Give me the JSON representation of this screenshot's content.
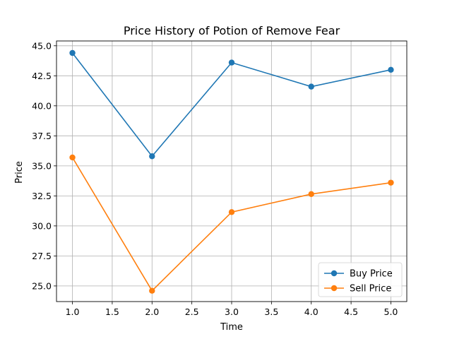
{
  "chart_data": {
    "type": "line",
    "title": "Price History of Potion of Remove Fear",
    "xlabel": "Time",
    "ylabel": "Price",
    "xlim": [
      0.8,
      5.2
    ],
    "ylim": [
      23.7,
      45.4
    ],
    "xticks": [
      1.0,
      1.5,
      2.0,
      2.5,
      3.0,
      3.5,
      4.0,
      4.5,
      5.0
    ],
    "xtick_labels": [
      "1.0",
      "1.5",
      "2.0",
      "2.5",
      "3.0",
      "3.5",
      "4.0",
      "4.5",
      "5.0"
    ],
    "yticks": [
      25.0,
      27.5,
      30.0,
      32.5,
      35.0,
      37.5,
      40.0,
      42.5,
      45.0
    ],
    "ytick_labels": [
      "25.0",
      "27.5",
      "30.0",
      "32.5",
      "35.0",
      "37.5",
      "40.0",
      "42.5",
      "45.0"
    ],
    "grid": true,
    "legend_position": "bottom-right",
    "x": [
      1,
      2,
      3,
      4,
      5
    ],
    "series": [
      {
        "name": "Buy Price",
        "color": "#1f77b4",
        "values": [
          44.4,
          35.8,
          43.6,
          41.6,
          43.0
        ]
      },
      {
        "name": "Sell Price",
        "color": "#ff7f0e",
        "values": [
          35.7,
          24.6,
          31.15,
          32.65,
          33.6
        ]
      }
    ]
  }
}
